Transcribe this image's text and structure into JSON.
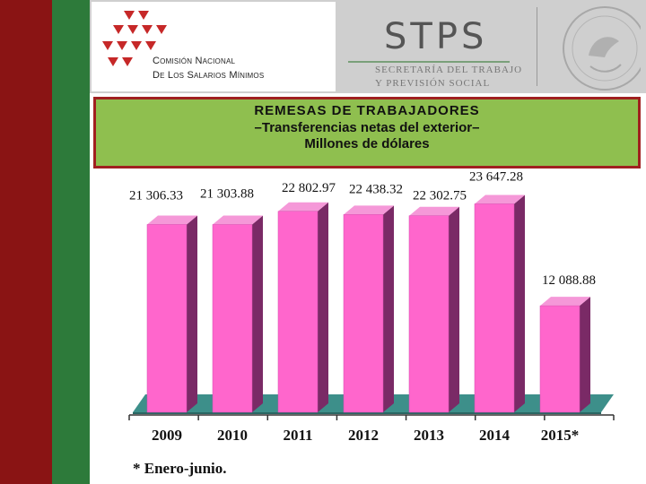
{
  "header": {
    "org_name_line1": "Comisión Nacional",
    "org_name_line2": "De Los Salarios Mínimos",
    "stps_wordmark": "STPS",
    "stps_line1": "SECRETARÍA DEL TRABAJO",
    "stps_line2": "Y PREVISIÓN SOCIAL"
  },
  "title": {
    "line1": "REMESAS DE TRABAJADORES",
    "line2": "–Transferencias netas del exterior–",
    "line3": "Millones de dólares"
  },
  "chart_data": {
    "type": "bar",
    "categories": [
      "2009",
      "2010",
      "2011",
      "2012",
      "2013",
      "2014",
      "2015*"
    ],
    "values": [
      21306.33,
      21303.88,
      22802.97,
      22438.32,
      22302.75,
      23647.28,
      12088.88
    ],
    "data_labels": [
      "21 306.33",
      "21 303.88",
      "22 802.97",
      "22 438.32",
      "22 302.75",
      "23 647.28",
      "12 088.88"
    ],
    "title": "REMESAS DE TRABAJADORES –Transferencias netas del exterior– Millones de dólares",
    "xlabel": "",
    "ylabel": "",
    "ylim": [
      0,
      30000
    ],
    "grid": false,
    "style": "3d-bar",
    "bar_color": "#ff66cc",
    "floor_color": "#3d8f8a"
  },
  "footnote": "* Enero-junio.",
  "colors": {
    "stripe_red": "#8a1414",
    "stripe_green": "#2d7a3a",
    "title_bg": "#8fbf4f",
    "title_border": "#a02020"
  }
}
